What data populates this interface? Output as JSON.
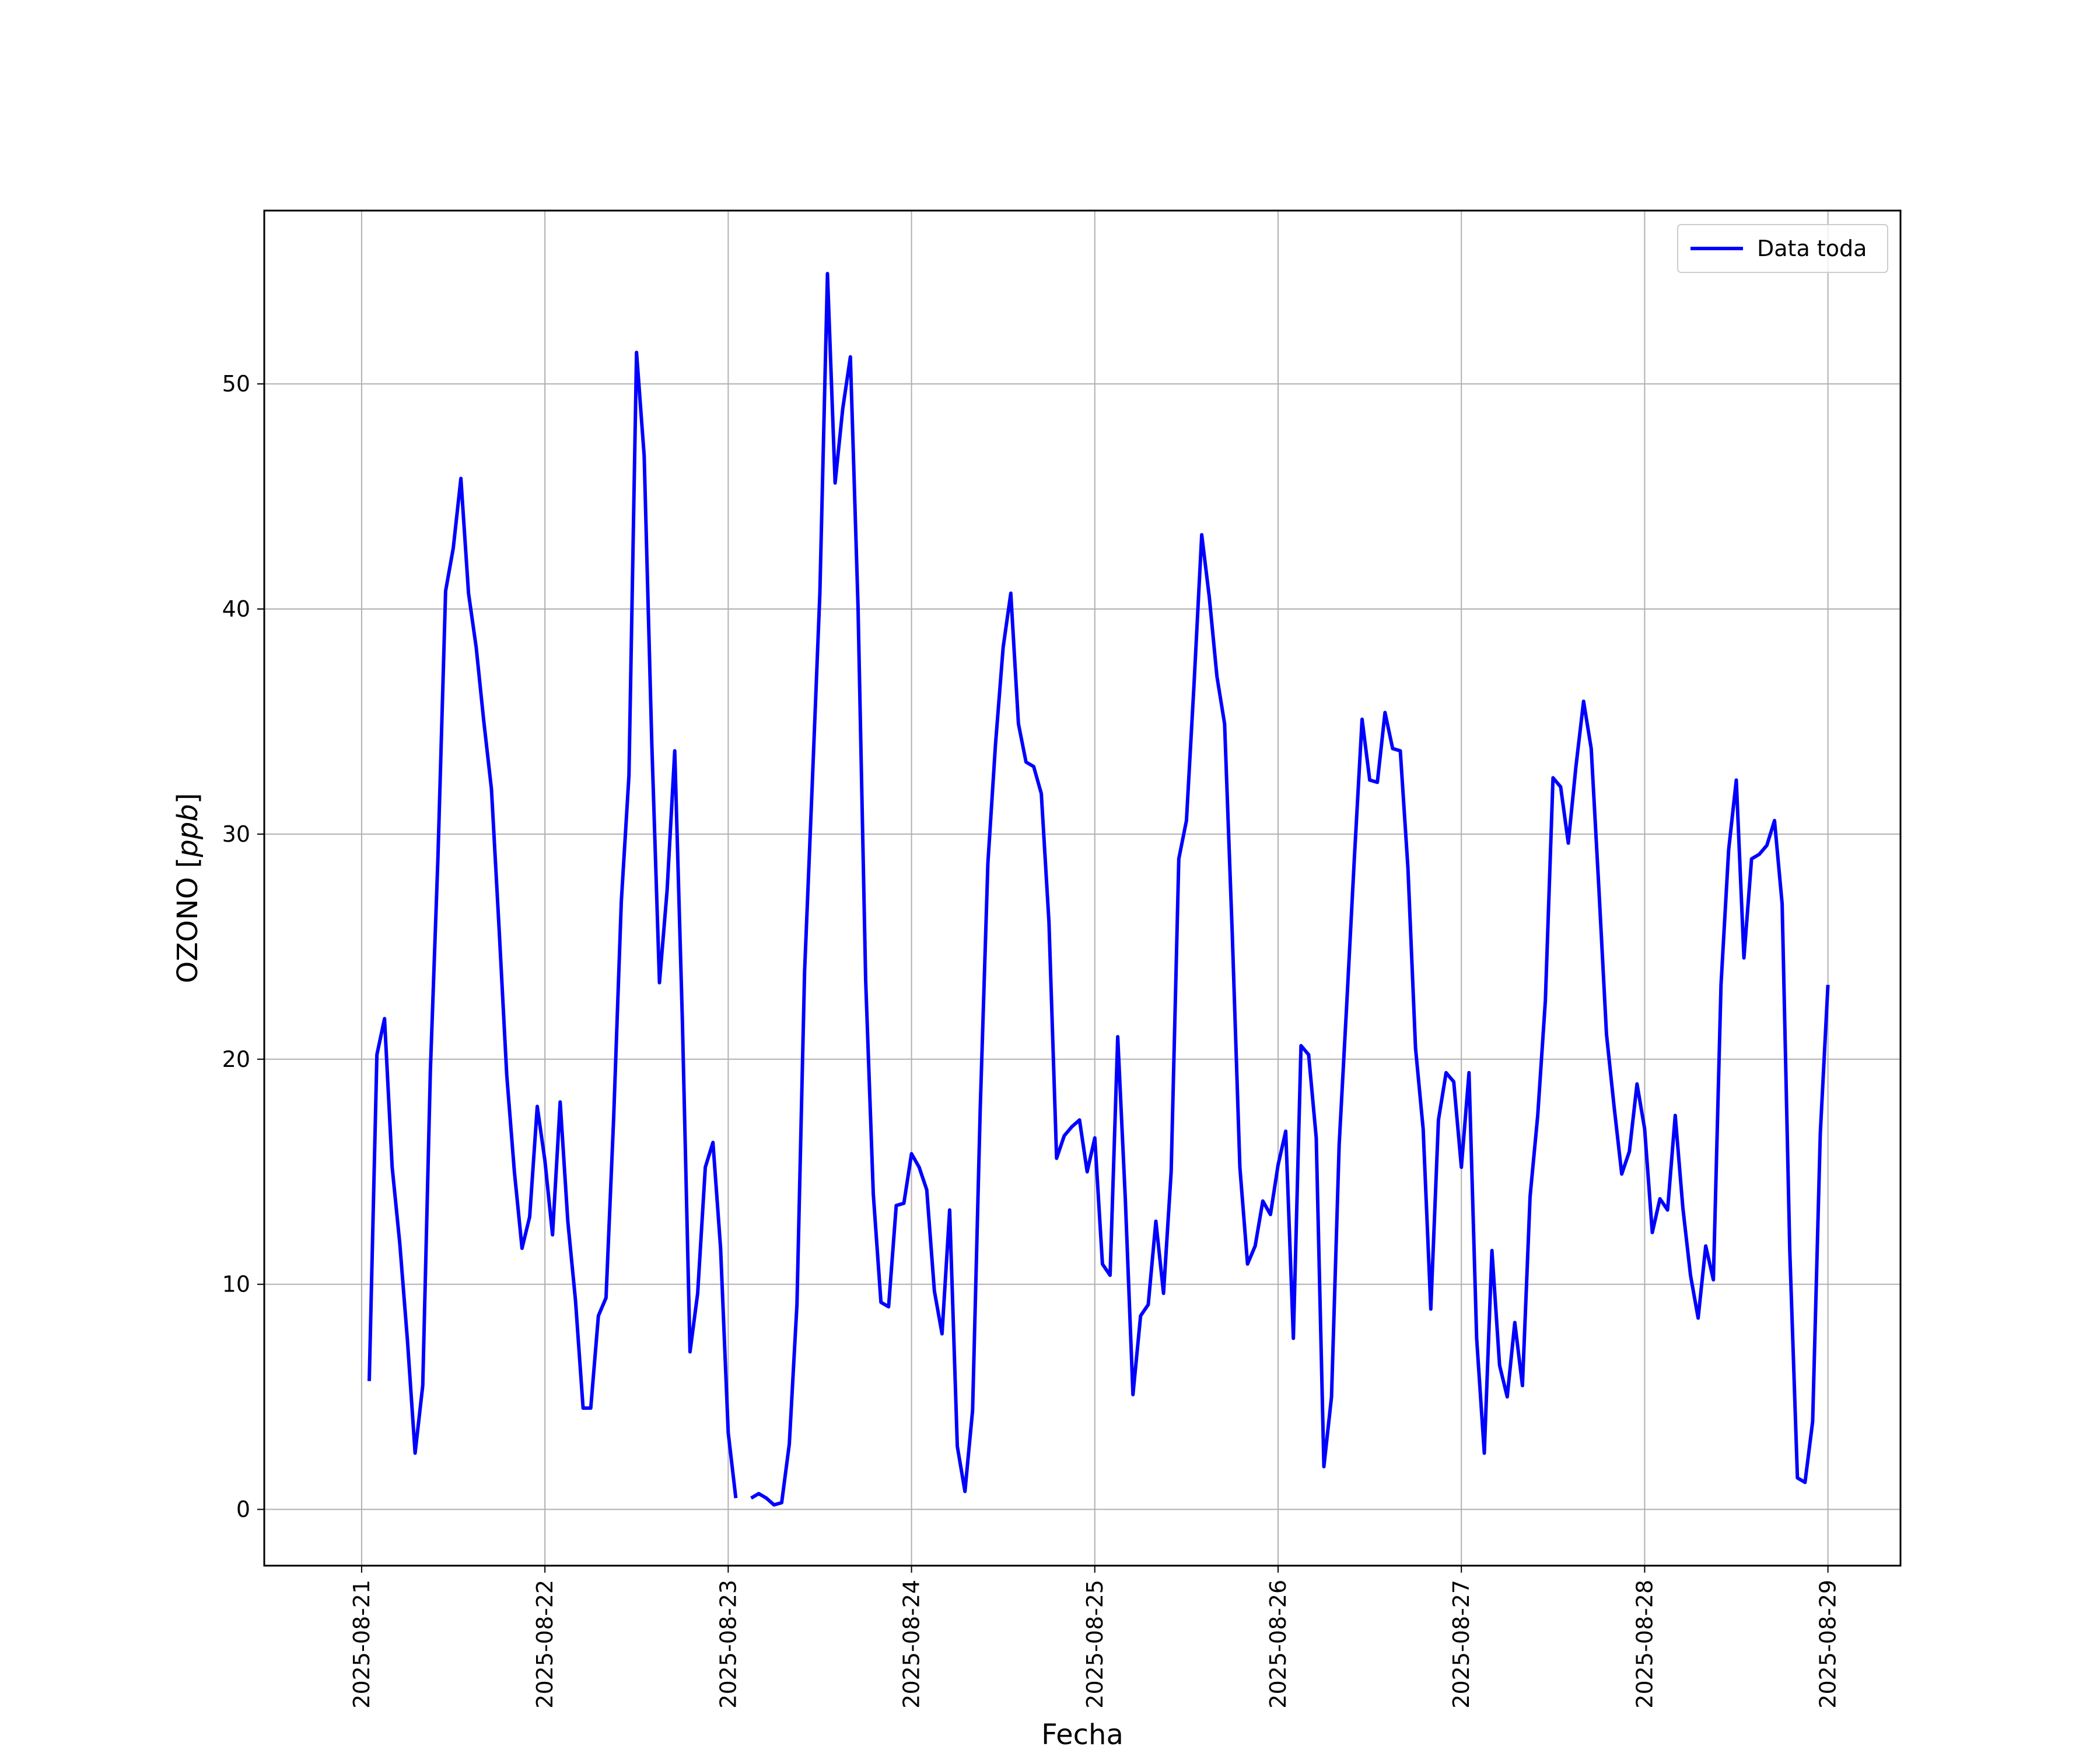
{
  "chart_data": {
    "type": "line",
    "title": "",
    "xlabel": "Fecha",
    "ylabel": "OZONO [ppb]",
    "ylabel_plain": "OZONO [",
    "ylabel_unit": "ppb",
    "ylabel_close": "]",
    "xlim": [
      "2025-08-20T11:15",
      "2025-08-29T09:30"
    ],
    "ylim": [
      -2.5,
      57.7
    ],
    "yticks": [
      0,
      10,
      20,
      30,
      40,
      50
    ],
    "xticks": [
      "2025-08-21",
      "2025-08-22",
      "2025-08-23",
      "2025-08-24",
      "2025-08-25",
      "2025-08-26",
      "2025-08-27",
      "2025-08-28",
      "2025-08-29"
    ],
    "grid": true,
    "legend_position": "top-right",
    "series": [
      {
        "name": "Data toda",
        "color": "#0000ff",
        "points": [
          [
            "2025-08-21T01:00",
            5.7
          ],
          [
            "2025-08-21T02:00",
            20.2
          ],
          [
            "2025-08-21T03:00",
            21.8
          ],
          [
            "2025-08-21T04:00",
            15.2
          ],
          [
            "2025-08-21T05:00",
            11.8
          ],
          [
            "2025-08-21T06:00",
            7.5
          ],
          [
            "2025-08-21T07:00",
            2.5
          ],
          [
            "2025-08-21T08:00",
            5.5
          ],
          [
            "2025-08-21T09:00",
            19.5
          ],
          [
            "2025-08-21T10:00",
            29.0
          ],
          [
            "2025-08-21T11:00",
            40.8
          ],
          [
            "2025-08-21T12:00",
            42.7
          ],
          [
            "2025-08-21T13:00",
            45.8
          ],
          [
            "2025-08-21T14:00",
            40.7
          ],
          [
            "2025-08-21T15:00",
            38.3
          ],
          [
            "2025-08-21T16:00",
            35.0
          ],
          [
            "2025-08-21T17:00",
            32.0
          ],
          [
            "2025-08-21T18:00",
            25.8
          ],
          [
            "2025-08-21T19:00",
            19.3
          ],
          [
            "2025-08-21T20:00",
            15.0
          ],
          [
            "2025-08-21T21:00",
            11.6
          ],
          [
            "2025-08-21T22:00",
            13.0
          ],
          [
            "2025-08-21T23:00",
            17.9
          ],
          [
            "2025-08-22T00:00",
            15.5
          ],
          [
            "2025-08-22T01:00",
            12.2
          ],
          [
            "2025-08-22T02:00",
            18.1
          ],
          [
            "2025-08-22T03:00",
            12.8
          ],
          [
            "2025-08-22T04:00",
            9.3
          ],
          [
            "2025-08-22T05:00",
            4.5
          ],
          [
            "2025-08-22T06:00",
            4.5
          ],
          [
            "2025-08-22T07:00",
            8.6
          ],
          [
            "2025-08-22T08:00",
            9.4
          ],
          [
            "2025-08-22T09:00",
            17.4
          ],
          [
            "2025-08-22T10:00",
            27.0
          ],
          [
            "2025-08-22T11:00",
            32.6
          ],
          [
            "2025-08-22T12:00",
            51.4
          ],
          [
            "2025-08-22T13:00",
            46.8
          ],
          [
            "2025-08-22T14:00",
            34.0
          ],
          [
            "2025-08-22T15:00",
            23.4
          ],
          [
            "2025-08-22T16:00",
            27.5
          ],
          [
            "2025-08-22T17:00",
            33.7
          ],
          [
            "2025-08-22T18:00",
            21.7
          ],
          [
            "2025-08-22T19:00",
            7.0
          ],
          [
            "2025-08-22T20:00",
            9.6
          ],
          [
            "2025-08-22T21:00",
            15.2
          ],
          [
            "2025-08-22T22:00",
            16.3
          ],
          [
            "2025-08-22T23:00",
            11.6
          ],
          [
            "2025-08-23T00:00",
            3.4
          ],
          [
            "2025-08-23T01:00",
            0.5
          ],
          [
            "2025-08-23T02:00",
            null
          ],
          [
            "2025-08-23T03:00",
            0.5
          ],
          [
            "2025-08-23T04:00",
            0.7
          ],
          [
            "2025-08-23T05:00",
            0.5
          ],
          [
            "2025-08-23T06:00",
            0.2
          ],
          [
            "2025-08-23T07:00",
            0.3
          ],
          [
            "2025-08-23T08:00",
            2.9
          ],
          [
            "2025-08-23T09:00",
            9.1
          ],
          [
            "2025-08-23T10:00",
            23.9
          ],
          [
            "2025-08-23T11:00",
            32.2
          ],
          [
            "2025-08-23T12:00",
            40.7
          ],
          [
            "2025-08-23T13:00",
            54.9
          ],
          [
            "2025-08-23T14:00",
            45.6
          ],
          [
            "2025-08-23T15:00",
            48.9
          ],
          [
            "2025-08-23T16:00",
            51.2
          ],
          [
            "2025-08-23T17:00",
            40.1
          ],
          [
            "2025-08-23T18:00",
            23.5
          ],
          [
            "2025-08-23T19:00",
            14.0
          ],
          [
            "2025-08-23T20:00",
            9.2
          ],
          [
            "2025-08-23T21:00",
            9.0
          ],
          [
            "2025-08-23T22:00",
            13.5
          ],
          [
            "2025-08-23T23:00",
            13.6
          ],
          [
            "2025-08-24T00:00",
            15.8
          ],
          [
            "2025-08-24T01:00",
            15.2
          ],
          [
            "2025-08-24T02:00",
            14.2
          ],
          [
            "2025-08-24T03:00",
            9.7
          ],
          [
            "2025-08-24T04:00",
            7.8
          ],
          [
            "2025-08-24T05:00",
            13.3
          ],
          [
            "2025-08-24T06:00",
            2.8
          ],
          [
            "2025-08-24T07:00",
            0.8
          ],
          [
            "2025-08-24T08:00",
            4.4
          ],
          [
            "2025-08-24T09:00",
            17.8
          ],
          [
            "2025-08-24T10:00",
            28.7
          ],
          [
            "2025-08-24T11:00",
            34.0
          ],
          [
            "2025-08-24T12:00",
            38.3
          ],
          [
            "2025-08-24T13:00",
            40.7
          ],
          [
            "2025-08-24T14:00",
            34.9
          ],
          [
            "2025-08-24T15:00",
            33.2
          ],
          [
            "2025-08-24T16:00",
            33.0
          ],
          [
            "2025-08-24T17:00",
            31.8
          ],
          [
            "2025-08-24T18:00",
            26.1
          ],
          [
            "2025-08-24T19:00",
            15.6
          ],
          [
            "2025-08-24T20:00",
            16.6
          ],
          [
            "2025-08-24T21:00",
            17.0
          ],
          [
            "2025-08-24T22:00",
            17.3
          ],
          [
            "2025-08-24T23:00",
            15.0
          ],
          [
            "2025-08-25T00:00",
            16.5
          ],
          [
            "2025-08-25T01:00",
            10.9
          ],
          [
            "2025-08-25T02:00",
            10.4
          ],
          [
            "2025-08-25T03:00",
            21.0
          ],
          [
            "2025-08-25T04:00",
            13.8
          ],
          [
            "2025-08-25T05:00",
            5.1
          ],
          [
            "2025-08-25T06:00",
            8.6
          ],
          [
            "2025-08-25T07:00",
            9.1
          ],
          [
            "2025-08-25T08:00",
            12.8
          ],
          [
            "2025-08-25T09:00",
            9.6
          ],
          [
            "2025-08-25T10:00",
            15.0
          ],
          [
            "2025-08-25T11:00",
            28.9
          ],
          [
            "2025-08-25T12:00",
            30.6
          ],
          [
            "2025-08-25T13:00",
            36.7
          ],
          [
            "2025-08-25T14:00",
            43.3
          ],
          [
            "2025-08-25T15:00",
            40.5
          ],
          [
            "2025-08-25T16:00",
            37.0
          ],
          [
            "2025-08-25T17:00",
            34.9
          ],
          [
            "2025-08-25T18:00",
            25.6
          ],
          [
            "2025-08-25T19:00",
            15.2
          ],
          [
            "2025-08-25T20:00",
            10.9
          ],
          [
            "2025-08-25T21:00",
            11.7
          ],
          [
            "2025-08-25T22:00",
            13.7
          ],
          [
            "2025-08-25T23:00",
            13.1
          ],
          [
            "2025-08-26T00:00",
            15.3
          ],
          [
            "2025-08-26T01:00",
            16.8
          ],
          [
            "2025-08-26T02:00",
            7.6
          ],
          [
            "2025-08-26T03:00",
            20.6
          ],
          [
            "2025-08-26T04:00",
            20.2
          ],
          [
            "2025-08-26T05:00",
            16.5
          ],
          [
            "2025-08-26T06:00",
            1.9
          ],
          [
            "2025-08-26T07:00",
            5.0
          ],
          [
            "2025-08-26T08:00",
            16.2
          ],
          [
            "2025-08-26T09:00",
            22.5
          ],
          [
            "2025-08-26T10:00",
            29.0
          ],
          [
            "2025-08-26T11:00",
            35.1
          ],
          [
            "2025-08-26T12:00",
            32.4
          ],
          [
            "2025-08-26T13:00",
            32.3
          ],
          [
            "2025-08-26T14:00",
            35.4
          ],
          [
            "2025-08-26T15:00",
            33.8
          ],
          [
            "2025-08-26T16:00",
            33.7
          ],
          [
            "2025-08-26T17:00",
            28.5
          ],
          [
            "2025-08-26T18:00",
            20.5
          ],
          [
            "2025-08-26T19:00",
            16.9
          ],
          [
            "2025-08-26T20:00",
            8.9
          ],
          [
            "2025-08-26T21:00",
            17.3
          ],
          [
            "2025-08-26T22:00",
            19.4
          ],
          [
            "2025-08-26T23:00",
            19.0
          ],
          [
            "2025-08-27T00:00",
            15.2
          ],
          [
            "2025-08-27T01:00",
            19.4
          ],
          [
            "2025-08-27T02:00",
            7.6
          ],
          [
            "2025-08-27T03:00",
            2.5
          ],
          [
            "2025-08-27T04:00",
            11.5
          ],
          [
            "2025-08-27T05:00",
            6.4
          ],
          [
            "2025-08-27T06:00",
            5.0
          ],
          [
            "2025-08-27T07:00",
            8.3
          ],
          [
            "2025-08-27T08:00",
            5.5
          ],
          [
            "2025-08-27T09:00",
            13.9
          ],
          [
            "2025-08-27T10:00",
            17.5
          ],
          [
            "2025-08-27T11:00",
            22.6
          ],
          [
            "2025-08-27T12:00",
            32.5
          ],
          [
            "2025-08-27T13:00",
            32.1
          ],
          [
            "2025-08-27T14:00",
            29.6
          ],
          [
            "2025-08-27T15:00",
            33.0
          ],
          [
            "2025-08-27T16:00",
            35.9
          ],
          [
            "2025-08-27T17:00",
            33.8
          ],
          [
            "2025-08-27T18:00",
            27.6
          ],
          [
            "2025-08-27T19:00",
            21.1
          ],
          [
            "2025-08-27T20:00",
            17.9
          ],
          [
            "2025-08-27T21:00",
            14.9
          ],
          [
            "2025-08-27T22:00",
            15.9
          ],
          [
            "2025-08-27T23:00",
            18.9
          ],
          [
            "2025-08-28T00:00",
            16.9
          ],
          [
            "2025-08-28T01:00",
            12.3
          ],
          [
            "2025-08-28T02:00",
            13.8
          ],
          [
            "2025-08-28T03:00",
            13.3
          ],
          [
            "2025-08-28T04:00",
            17.5
          ],
          [
            "2025-08-28T05:00",
            13.4
          ],
          [
            "2025-08-28T06:00",
            10.4
          ],
          [
            "2025-08-28T07:00",
            8.5
          ],
          [
            "2025-08-28T08:00",
            11.7
          ],
          [
            "2025-08-28T09:00",
            10.2
          ],
          [
            "2025-08-28T10:00",
            23.3
          ],
          [
            "2025-08-28T11:00",
            29.3
          ],
          [
            "2025-08-28T12:00",
            32.4
          ],
          [
            "2025-08-28T13:00",
            24.5
          ],
          [
            "2025-08-28T14:00",
            28.9
          ],
          [
            "2025-08-28T15:00",
            29.1
          ],
          [
            "2025-08-28T16:00",
            29.5
          ],
          [
            "2025-08-28T17:00",
            30.6
          ],
          [
            "2025-08-28T18:00",
            26.9
          ],
          [
            "2025-08-28T19:00",
            11.5
          ],
          [
            "2025-08-28T20:00",
            1.4
          ],
          [
            "2025-08-28T21:00",
            1.2
          ],
          [
            "2025-08-28T22:00",
            3.9
          ],
          [
            "2025-08-28T23:00",
            16.7
          ],
          [
            "2025-08-29T00:00",
            23.3
          ]
        ]
      }
    ]
  }
}
